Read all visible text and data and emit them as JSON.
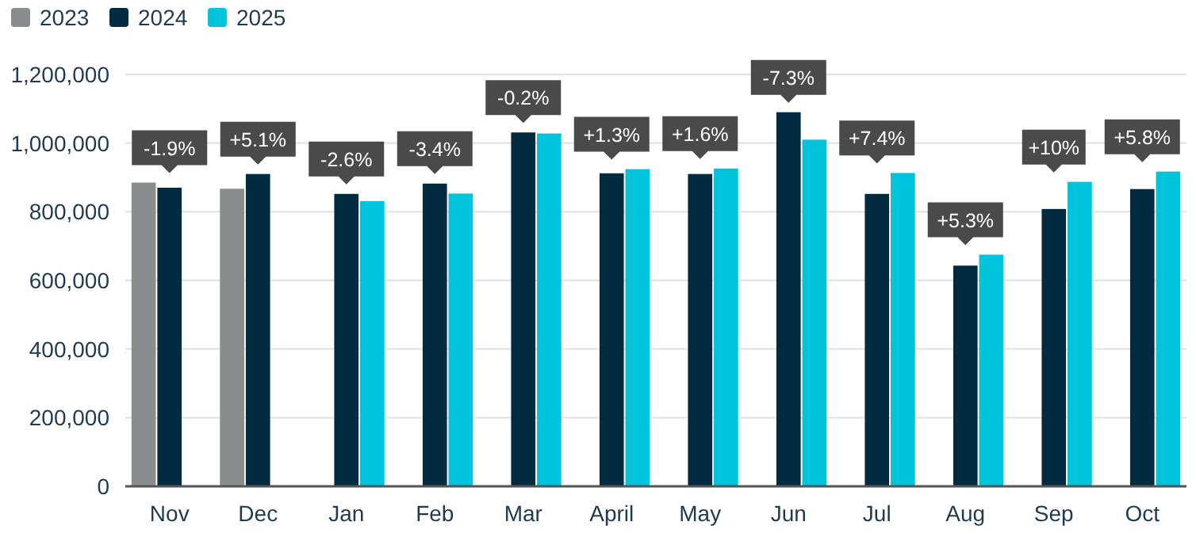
{
  "chart_data": {
    "type": "bar",
    "categories": [
      "Nov",
      "Dec",
      "Jan",
      "Feb",
      "Mar",
      "April",
      "May",
      "Jun",
      "Jul",
      "Aug",
      "Sep",
      "Oct"
    ],
    "series": [
      {
        "name": "2023",
        "color": "#898d8e",
        "values": [
          885000,
          867000,
          null,
          null,
          null,
          null,
          null,
          null,
          null,
          null,
          null,
          null
        ]
      },
      {
        "name": "2024",
        "color": "#002b40",
        "values": [
          870000,
          910000,
          852000,
          882000,
          1031000,
          912000,
          910000,
          1090000,
          852000,
          643000,
          808000,
          866000
        ]
      },
      {
        "name": "2025",
        "color": "#00c4dc",
        "values": [
          null,
          null,
          831000,
          853000,
          1028000,
          924000,
          926000,
          1010000,
          913000,
          675000,
          887000,
          917000
        ]
      }
    ],
    "ylim": [
      0,
      1200000
    ],
    "yticks": [
      {
        "value": 0,
        "label": "0"
      },
      {
        "value": 200000,
        "label": "200,000"
      },
      {
        "value": 400000,
        "label": "400,000"
      },
      {
        "value": 600000,
        "label": "600,000"
      },
      {
        "value": 800000,
        "label": "800,000"
      },
      {
        "value": 1000000,
        "label": "1,000,000"
      },
      {
        "value": 1200000,
        "label": "1,200,000"
      }
    ],
    "grid": "y",
    "legend": "top left",
    "annotations": [
      "-1.9%",
      "+5.1%",
      "-2.6%",
      "-3.4%",
      "-0.2%",
      "+1.3%",
      "+1.6%",
      "-7.3%",
      "+7.4%",
      "+5.3%",
      "+10%",
      "+5.8%"
    ]
  }
}
